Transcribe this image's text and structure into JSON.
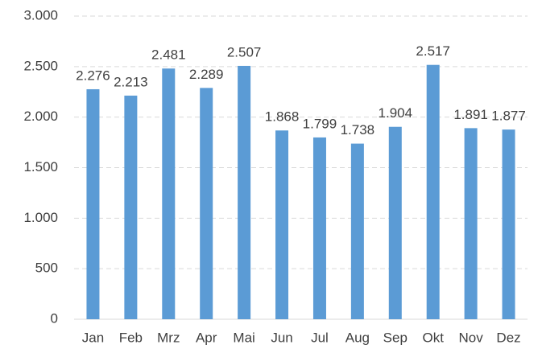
{
  "chart_data": {
    "type": "bar",
    "categories": [
      "Jan",
      "Feb",
      "Mrz",
      "Apr",
      "Mai",
      "Jun",
      "Jul",
      "Aug",
      "Sep",
      "Okt",
      "Nov",
      "Dez"
    ],
    "values": [
      2276,
      2213,
      2481,
      2289,
      2507,
      1868,
      1799,
      1738,
      1904,
      2517,
      1891,
      1877
    ],
    "value_labels": [
      "2.276",
      "2.213",
      "2.481",
      "2.289",
      "2.507",
      "1.868",
      "1.799",
      "1.738",
      "1.904",
      "2.517",
      "1.891",
      "1.877"
    ],
    "color": "#5b9bd5",
    "ylim": [
      0,
      3000
    ],
    "yticks": [
      0,
      500,
      {
        "value": 1000,
        "label": "1.000"
      },
      {
        "value": 1500,
        "label": "1.500"
      },
      {
        "value": 2000,
        "label": "2.000"
      },
      {
        "value": 2500,
        "label": "2.500"
      },
      {
        "value": 3000,
        "label": "3.000"
      }
    ],
    "grid": true
  }
}
